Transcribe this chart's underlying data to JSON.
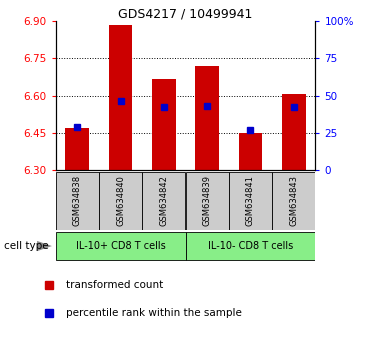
{
  "title": "GDS4217 / 10499941",
  "samples": [
    "GSM634838",
    "GSM634840",
    "GSM634842",
    "GSM634839",
    "GSM634841",
    "GSM634843"
  ],
  "bar_bottoms": [
    6.3,
    6.3,
    6.3,
    6.3,
    6.3,
    6.3
  ],
  "bar_tops": [
    6.47,
    6.885,
    6.665,
    6.72,
    6.45,
    6.605
  ],
  "percentile_values": [
    6.475,
    6.578,
    6.553,
    6.558,
    6.463,
    6.553
  ],
  "ylim": [
    6.3,
    6.9
  ],
  "yticks_left": [
    6.3,
    6.45,
    6.6,
    6.75,
    6.9
  ],
  "yticks_right": [
    0,
    25,
    50,
    75,
    100
  ],
  "bar_color": "#cc0000",
  "percentile_color": "#0000cc",
  "group1_label": "IL-10+ CD8 T cells",
  "group2_label": "IL-10- CD8 T cells",
  "group1_indices": [
    0,
    1,
    2
  ],
  "group2_indices": [
    3,
    4,
    5
  ],
  "group_bg_color": "#88ee88",
  "sample_bg_color": "#cccccc",
  "legend_red_label": "transformed count",
  "legend_blue_label": "percentile rank within the sample",
  "cell_type_label": "cell type"
}
